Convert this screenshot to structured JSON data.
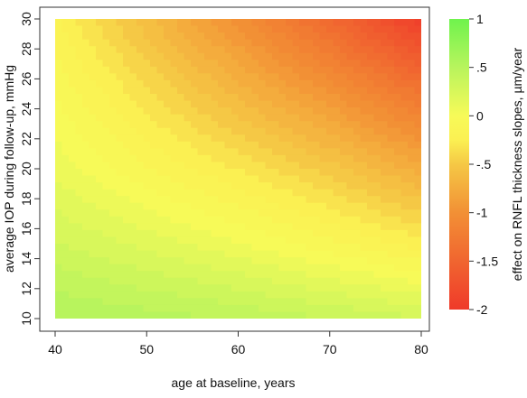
{
  "chart_data": {
    "type": "heatmap",
    "title": "",
    "xlabel": "age at baseline, years",
    "ylabel": "average IOP during follow-up, mmHg",
    "colorbar_label": "effect on RNFL thickness slopes, µm/year",
    "xlim": [
      40,
      80
    ],
    "ylim": [
      10,
      30
    ],
    "x_ticks": [
      40,
      50,
      60,
      70,
      80
    ],
    "y_ticks": [
      10,
      12,
      14,
      16,
      18,
      20,
      22,
      24,
      26,
      28,
      30
    ],
    "colorbar_range": [
      -2,
      1
    ],
    "colorbar_ticks": [
      {
        "value": 1,
        "label": "1"
      },
      {
        "value": 0.5,
        "label": ".5"
      },
      {
        "value": 0,
        "label": "0"
      },
      {
        "value": -0.5,
        "label": "-.5"
      },
      {
        "value": -1,
        "label": "-1"
      },
      {
        "value": -1.5,
        "label": "-1.5"
      },
      {
        "value": -2,
        "label": "-2"
      }
    ],
    "colorscale": [
      {
        "value": -2,
        "color": "#ef3a2a"
      },
      {
        "value": -1,
        "color": "#f29035"
      },
      {
        "value": -0.5,
        "color": "#f5c845"
      },
      {
        "value": -0.25,
        "color": "#fbf052"
      },
      {
        "value": 0,
        "color": "#f7fa58"
      },
      {
        "value": 0.5,
        "color": "#b8f45d"
      },
      {
        "value": 1,
        "color": "#6ff34d"
      }
    ],
    "grid": false,
    "z_grid": {
      "x": [
        40,
        50,
        60,
        70,
        80
      ],
      "y": [
        10,
        15,
        20,
        25,
        30
      ],
      "z": [
        [
          0.55,
          0.5,
          0.45,
          0.38,
          0.3
        ],
        [
          0.3,
          0.18,
          0.05,
          -0.1,
          -0.25
        ],
        [
          0.1,
          -0.12,
          -0.3,
          -0.5,
          -0.75
        ],
        [
          -0.05,
          -0.35,
          -0.65,
          -0.95,
          -1.3
        ],
        [
          -0.2,
          -0.6,
          -1.0,
          -1.45,
          -1.95
        ]
      ]
    }
  }
}
